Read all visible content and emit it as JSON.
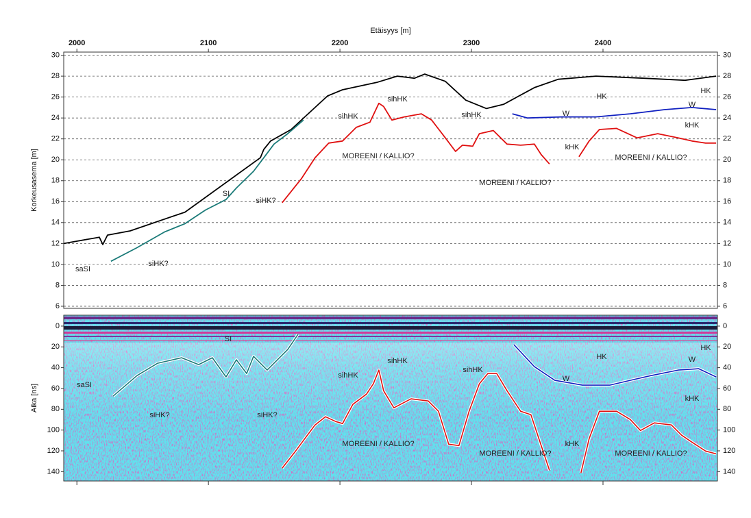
{
  "chart_data": [
    {
      "type": "line",
      "xlabel": "Etäisyys [m]",
      "ylabel": "Korkeusasema [m]",
      "xlim": [
        1990,
        2487
      ],
      "xticks": [
        2000,
        2100,
        2200,
        2300,
        2400
      ],
      "ylim": [
        5.8,
        30.3
      ],
      "yticks": [
        6,
        8,
        10,
        12,
        14,
        16,
        18,
        20,
        22,
        24,
        26,
        28,
        30
      ],
      "grid": true,
      "series": [
        {
          "color": "#000000",
          "x": [
            1990.0,
            2017.1,
            2019.7,
            2023.3,
            2040.5,
            2082.2,
            2139.5,
            2142.1,
            2147.3,
            2162.9,
            2173.3,
            2190.5,
            2202.0,
            2228.0,
            2243.6,
            2256.7,
            2264.5,
            2280.1,
            2295.7,
            2311.4,
            2324.4,
            2347.8,
            2366.0,
            2394.7,
            2431.1,
            2462.4,
            2486.0
          ],
          "values": [
            12.0,
            12.6,
            11.9,
            12.8,
            13.2,
            15.0,
            20.2,
            21.0,
            21.8,
            22.9,
            24.1,
            26.1,
            26.7,
            27.4,
            28.0,
            27.8,
            28.2,
            27.5,
            25.7,
            24.9,
            25.3,
            26.9,
            27.7,
            28.0,
            27.8,
            27.6,
            28.0
          ]
        },
        {
          "color": "#1a7a78",
          "x": [
            2025.9,
            2045.7,
            2066.6,
            2082.2,
            2097.8,
            2113.4,
            2121.3,
            2134.3,
            2142.1,
            2149.9,
            2160.3,
            2172.3
          ],
          "values": [
            10.3,
            11.6,
            13.1,
            13.9,
            15.2,
            16.2,
            17.3,
            18.9,
            20.2,
            21.5,
            22.5,
            23.8
          ]
        },
        {
          "color": "#e01010",
          "x": [
            2156.1,
            2170.7,
            2181.1,
            2191.5,
            2202.0,
            2212.4,
            2222.8,
            2229.6,
            2233.2,
            2239.5,
            2248.9,
            2261.9,
            2269.7,
            2280.1,
            2287.9,
            2293.1,
            2300.9,
            2306.0,
            2316.6,
            2327.0,
            2337.4,
            2347.8,
            2353.0,
            2359.3,
            2370,
            2381.7,
            2389.5,
            2397.3,
            2410.3,
            2425.9,
            2441.6,
            2457.2,
            2467.6,
            2478.0,
            2486.0
          ],
          "values": [
            15.9,
            18.2,
            20.2,
            21.6,
            21.8,
            23.1,
            23.6,
            25.4,
            25.1,
            23.8,
            24.1,
            24.4,
            23.8,
            22.1,
            20.8,
            21.4,
            21.3,
            22.5,
            22.8,
            21.5,
            21.4,
            21.5,
            20.5,
            19.6,
            null,
            20.3,
            21.8,
            22.9,
            23.0,
            22.1,
            22.5,
            22.1,
            21.8,
            21.6,
            21.6
          ]
        },
        {
          "color": "#1020c0",
          "x": [
            2331.1,
            2342.6,
            2368.6,
            2394.7,
            2420.7,
            2446.8,
            2467.6,
            2486.0
          ],
          "values": [
            24.4,
            24.0,
            24.1,
            24.1,
            24.4,
            24.8,
            25.0,
            24.8
          ]
        }
      ],
      "annotations": [
        "saSI",
        "siHK?",
        "SI",
        "siHK?",
        "sihHK",
        "sihHK",
        "sihHK",
        "MOREENI / KALLIO?",
        "MOREENI / KALLIO?",
        "HK",
        "W",
        "HK",
        "W",
        "kHK",
        "kHK",
        "MOREENI / KALLIO?"
      ]
    },
    {
      "type": "line",
      "ylabel": "Aika [ns]",
      "xlim": [
        1990,
        2487
      ],
      "xticks": [
        2000,
        2100,
        2200,
        2300,
        2400
      ],
      "ylim": [
        149,
        -10.5
      ],
      "yticks": [
        0,
        20,
        40,
        60,
        80,
        100,
        120,
        140
      ],
      "grid": false,
      "series": [
        {
          "color": "#1a7a78",
          "x": [
            2027.5,
            2045.7,
            2061.4,
            2079.6,
            2092.6,
            2103.0,
            2113.4,
            2121.3,
            2129.1,
            2134.3,
            2144.7,
            2155.1,
            2160.3,
            2168.1
          ],
          "values": [
            67.4,
            47.6,
            35.7,
            30.4,
            37.0,
            30.4,
            48.9,
            32.4,
            45.6,
            29.1,
            42.3,
            29.1,
            22.5,
            7.9
          ]
        },
        {
          "color": "#e01010",
          "x": [
            2156.1,
            2165.5,
            2173.3,
            2181.1,
            2189.0,
            2196.8,
            2202.0,
            2209.8,
            2220.2,
            2225.4,
            2229.6,
            2233.2,
            2241.0,
            2254.1,
            2267.1,
            2274.9,
            2282.7,
            2290.5,
            2298.2,
            2306.0,
            2312.4,
            2319.2,
            2327.0,
            2337.4,
            2345.2,
            2353.0,
            2359.3,
            2370,
            2383.2,
            2389.5,
            2397.3,
            2410.3,
            2420.7,
            2428.5,
            2439.0,
            2452.0,
            2459.8,
            2467.6,
            2478.0,
            2486.0
          ],
          "values": [
            136.7,
            121.5,
            108.3,
            95.1,
            87.2,
            91.8,
            93.8,
            75.3,
            65.4,
            55.5,
            42.3,
            62.1,
            78.6,
            70.0,
            72.0,
            81.9,
            113.6,
            114.9,
            81.9,
            55.5,
            45.6,
            45.6,
            62.1,
            81.9,
            85.2,
            114.9,
            138.7,
            null,
            141.3,
            108.3,
            81.9,
            81.9,
            89.8,
            100.4,
            93.1,
            95.1,
            105.0,
            111.6,
            120.2,
            122.9
          ]
        },
        {
          "color": "#1020c0",
          "x": [
            2332.2,
            2347.8,
            2363.4,
            2384.3,
            2405.1,
            2420.7,
            2436.4,
            2457.2,
            2472.8,
            2486.0
          ],
          "values": [
            17.8,
            39.0,
            52.2,
            56.8,
            56.8,
            52.2,
            47.6,
            42.3,
            41.0,
            48.9
          ]
        }
      ],
      "annotations": [
        "saSI",
        "siHK?",
        "SI",
        "siHK?",
        "sihHK",
        "sihHK",
        "sihHK",
        "MOREENI / KALLIO?",
        "MOREENI / KALLIO?",
        "HK",
        "W",
        "HK",
        "W",
        "kHK",
        "kHK",
        "MOREENI / KALLIO?"
      ]
    }
  ]
}
